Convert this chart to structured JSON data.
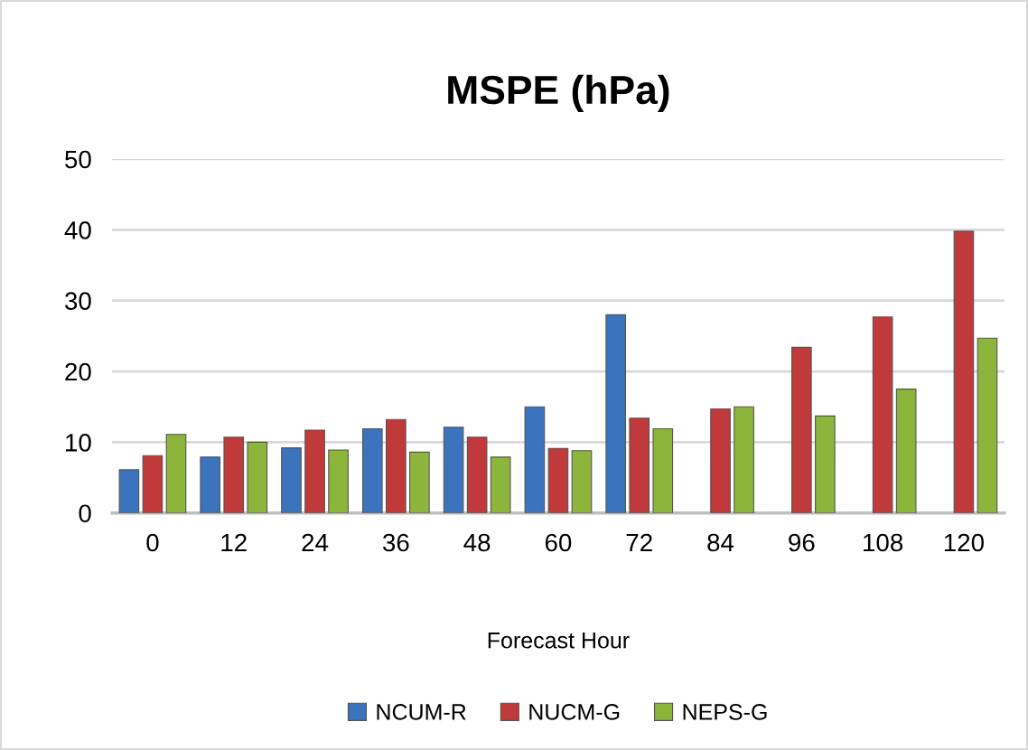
{
  "chart_data": {
    "type": "bar",
    "title": "MSPE (hPa)",
    "xlabel": "Forecast Hour",
    "categories": [
      "0",
      "12",
      "24",
      "36",
      "48",
      "60",
      "72",
      "84",
      "96",
      "108",
      "120"
    ],
    "series": [
      {
        "name": "NCUM-R",
        "color": "#3b73bd",
        "values": [
          6.1,
          7.9,
          9.2,
          11.9,
          12.1,
          15.0,
          28.0,
          null,
          null,
          null,
          null
        ]
      },
      {
        "name": "NUCM-G",
        "color": "#c0393b",
        "values": [
          8.1,
          10.7,
          11.7,
          13.2,
          10.7,
          9.1,
          13.4,
          14.7,
          23.4,
          27.7,
          39.8
        ]
      },
      {
        "name": "NEPS-G",
        "color": "#8db53c",
        "values": [
          11.1,
          10.0,
          8.9,
          8.6,
          7.9,
          8.8,
          11.9,
          15.0,
          13.7,
          17.5,
          24.7
        ]
      }
    ],
    "ylim": [
      0,
      50
    ],
    "yticks": [
      0,
      10,
      20,
      30,
      40,
      50
    ],
    "grid": "y",
    "legend": "bottom"
  }
}
